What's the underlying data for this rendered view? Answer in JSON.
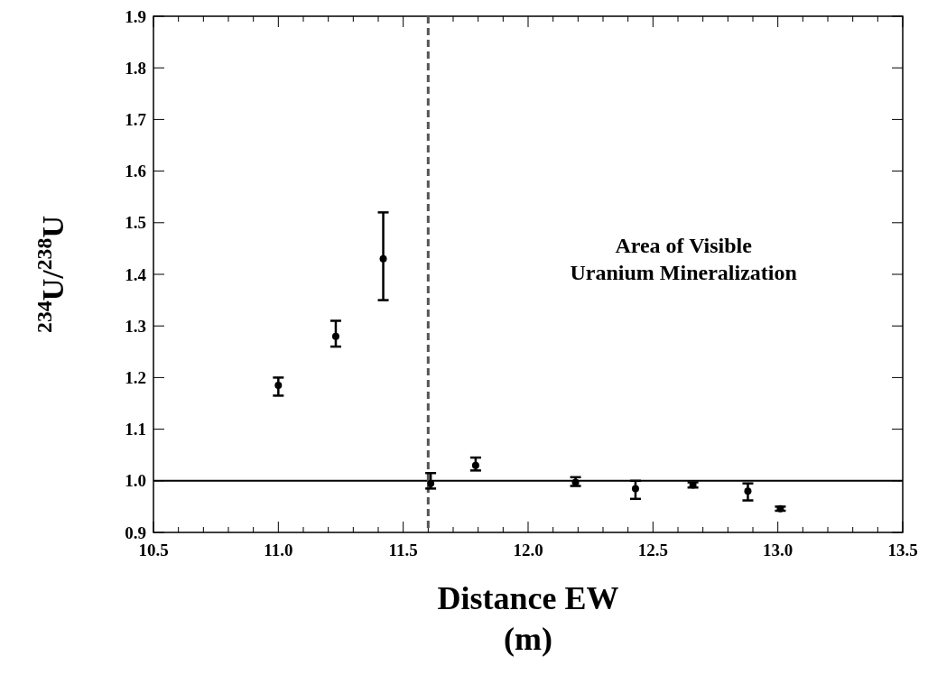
{
  "chart_data": {
    "type": "scatter",
    "xlabel": "Distance EW\n(m)",
    "ylabel": "$^{234}$U/$^{238}$U",
    "annotations": [
      "Area of Visible\nUranium Mineralization"
    ],
    "x": [
      11.0,
      11.23,
      11.42,
      11.61,
      11.79,
      12.19,
      12.43,
      12.66,
      12.88,
      13.01
    ],
    "values": [
      1.185,
      1.28,
      1.43,
      0.995,
      1.03,
      0.997,
      0.985,
      0.992,
      0.98,
      0.946
    ],
    "errors": [
      [
        1.165,
        1.2
      ],
      [
        1.26,
        1.31
      ],
      [
        1.35,
        1.52
      ],
      [
        0.985,
        1.015
      ],
      [
        1.02,
        1.045
      ],
      [
        0.99,
        1.007
      ],
      [
        0.965,
        1.0
      ],
      [
        0.987,
        0.997
      ],
      [
        0.962,
        0.995
      ],
      [
        0.942,
        0.95
      ]
    ],
    "color": "#000000",
    "marker": "circle",
    "xlim": [
      10.5,
      13.5
    ],
    "ylim": [
      0.9,
      1.9
    ],
    "xticks": [
      10.5,
      {
        "value": 10.6,
        "label": null
      },
      {
        "value": 10.7,
        "label": null
      },
      {
        "value": 10.8,
        "label": null
      },
      {
        "value": 10.9,
        "label": null
      },
      {
        "value": 11,
        "label": "11.0"
      },
      {
        "value": 11.1,
        "label": null
      },
      {
        "value": 11.2,
        "label": null
      },
      {
        "value": 11.3,
        "label": null
      },
      {
        "value": 11.4,
        "label": null
      },
      11.5,
      {
        "value": 11.6,
        "label": null
      },
      {
        "value": 11.7,
        "label": null
      },
      {
        "value": 11.8,
        "label": null
      },
      {
        "value": 11.9,
        "label": null
      },
      {
        "value": 12,
        "label": "12.0"
      },
      {
        "value": 12.1,
        "label": null
      },
      {
        "value": 12.2,
        "label": null
      },
      {
        "value": 12.3,
        "label": null
      },
      {
        "value": 12.4,
        "label": null
      },
      12.5,
      {
        "value": 12.6,
        "label": null
      },
      {
        "value": 12.7,
        "label": null
      },
      {
        "value": 12.8,
        "label": null
      },
      {
        "value": 12.9,
        "label": null
      },
      {
        "value": 13,
        "label": "13.0"
      },
      {
        "value": 13.1,
        "label": null
      },
      {
        "value": 13.2,
        "label": null
      },
      {
        "value": 13.3,
        "label": null
      },
      {
        "value": 13.4,
        "label": null
      },
      13.5
    ],
    "yticks": [
      0.9,
      {
        "value": 1,
        "label": "1.0"
      },
      1.1,
      1.2,
      1.3,
      1.4,
      1.5,
      1.6,
      1.7,
      1.8,
      1.9
    ],
    "ref_lines": [
      {
        "axis": "y",
        "value": 1.0,
        "color": "#000000",
        "line_style": "solid"
      },
      {
        "axis": "x",
        "value": 11.6,
        "color": "#555555",
        "line_style": "dashed"
      }
    ],
    "grid": false
  }
}
